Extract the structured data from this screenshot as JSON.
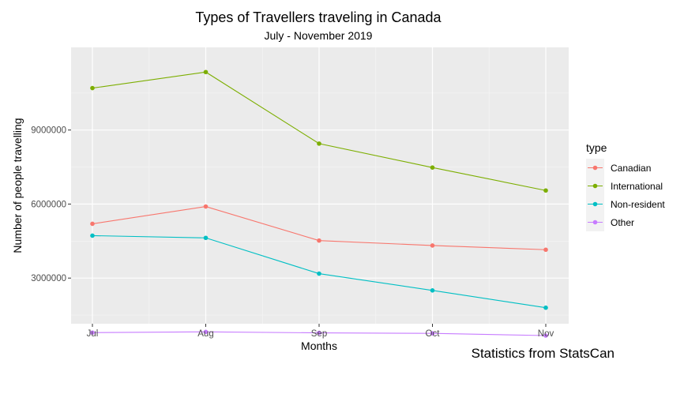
{
  "chart_data": {
    "type": "line",
    "title": "Types of Travellers traveling in Canada",
    "subtitle": "July - November 2019",
    "xlabel": "Months",
    "ylabel": "Number of people travelling",
    "caption": "Statistics from StatsCan",
    "categories": [
      "Jul",
      "Aug",
      "Sep",
      "Oct",
      "Nov"
    ],
    "ylim": [
      1150000,
      12350000
    ],
    "yticks": [
      3000000,
      6000000,
      9000000
    ],
    "ytick_labels": [
      "3000000",
      "6000000",
      "9000000"
    ],
    "grid": true,
    "legend": {
      "title": "type",
      "position": "right"
    },
    "series": [
      {
        "name": "Canadian",
        "color": "#F8766D",
        "values": [
          5200000,
          5900000,
          4520000,
          4320000,
          4150000
        ]
      },
      {
        "name": "International",
        "color": "#7CAE00",
        "values": [
          10700000,
          11350000,
          8450000,
          7480000,
          6550000
        ]
      },
      {
        "name": "Non-resident",
        "color": "#00BFC4",
        "values": [
          4720000,
          4630000,
          3180000,
          2500000,
          1800000
        ]
      },
      {
        "name": "Other",
        "color": "#C77CFF",
        "values": [
          790000,
          820000,
          780000,
          760000,
          670000
        ]
      }
    ]
  }
}
